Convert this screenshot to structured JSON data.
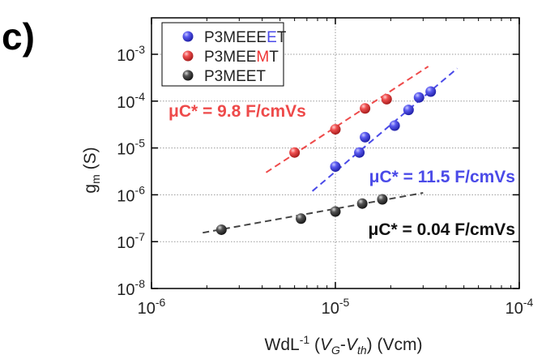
{
  "panel_label": "c)",
  "chart_data": {
    "type": "scatter",
    "xscale": "log",
    "yscale": "log",
    "xlim": [
      1e-06,
      0.0001
    ],
    "ylim": [
      1e-08,
      0.006
    ],
    "grid": true,
    "legend_position": "top-left",
    "x_tick_values": [
      1e-06,
      1e-05,
      0.0001
    ],
    "y_tick_values": [
      1e-08,
      1e-07,
      1e-06,
      1e-05,
      0.0001,
      0.001
    ],
    "xlabel": {
      "main": "WdL",
      "sup": "-1",
      "paren_open": " (",
      "v1": "V",
      "sub1": "G",
      "dash": "-",
      "v2": "V",
      "sub2": "th",
      "paren_close": ")",
      "unit": " (Vcm)"
    },
    "ylabel": {
      "g": "g",
      "sub": "m",
      "unit": " (S)"
    },
    "series": [
      {
        "name_parts": [
          "P3MEEE",
          "E",
          "T"
        ],
        "color": "#4a4ae8",
        "highlight_color": "#4a4ae8",
        "points": [
          [
            1e-05,
            4e-06
          ],
          [
            1.35e-05,
            8e-06
          ],
          [
            1.45e-05,
            1.7e-05
          ],
          [
            2.1e-05,
            3e-05
          ],
          [
            2.5e-05,
            6.5e-05
          ],
          [
            2.85e-05,
            0.00012
          ],
          [
            3.3e-05,
            0.00016
          ]
        ],
        "fit": [
          [
            7.5e-06,
            1.2e-06
          ],
          [
            4.6e-05,
            0.0005
          ]
        ],
        "annotation": "μC* = 11.5 F/cmVs"
      },
      {
        "name_parts": [
          "P3MEE",
          "M",
          "T"
        ],
        "color": "#ee4a4a",
        "highlight_color": "#ee3333",
        "points": [
          [
            6e-06,
            8e-06
          ],
          [
            1e-05,
            2.5e-05
          ],
          [
            1.45e-05,
            7e-05
          ],
          [
            1.9e-05,
            0.00011
          ]
        ],
        "fit": [
          [
            4.2e-06,
            3e-06
          ],
          [
            3.2e-05,
            0.00055
          ]
        ],
        "annotation": "μC* = 9.8 F/cmVs"
      },
      {
        "name_parts": [
          "P3MEET",
          "",
          ""
        ],
        "color": "#444444",
        "highlight_color": "#444444",
        "points": [
          [
            2.4e-06,
            1.8e-07
          ],
          [
            6.5e-06,
            3.1e-07
          ],
          [
            1e-05,
            4.4e-07
          ],
          [
            1.4e-05,
            6.5e-07
          ],
          [
            1.8e-05,
            8e-07
          ]
        ],
        "fit": [
          [
            1.9e-06,
            1.55e-07
          ],
          [
            3e-05,
            1.1e-06
          ]
        ],
        "annotation": "μC* = 0.04 F/cmVs"
      }
    ]
  }
}
